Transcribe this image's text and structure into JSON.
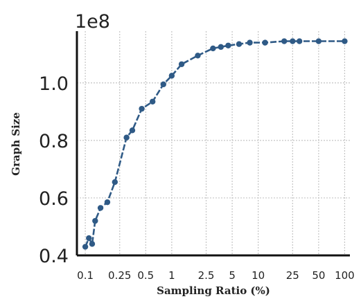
{
  "chart_data": {
    "type": "line",
    "title": "",
    "xlabel": "Sampling Ratio (%)",
    "ylabel": "Graph Size",
    "y_offset_label": "1e8",
    "x_scale": "log",
    "xlim": [
      0.08,
      115
    ],
    "ylim": [
      0.4,
      1.18
    ],
    "x_ticks": [
      0.1,
      0.25,
      0.5,
      1,
      2.5,
      5,
      10,
      25,
      50,
      100
    ],
    "x_tick_labels": [
      "0.1",
      "0.25",
      "0.5",
      "1",
      "2.5",
      "5",
      "10",
      "25",
      "50",
      "100"
    ],
    "y_ticks": [
      0.4,
      0.6,
      0.8,
      1.0
    ],
    "y_tick_labels": [
      "0.4",
      "0.6",
      "0.8",
      "1.0"
    ],
    "grid": true,
    "series": [
      {
        "color": "#2f5a86",
        "x": [
          0.1,
          0.11,
          0.12,
          0.13,
          0.15,
          0.18,
          0.22,
          0.3,
          0.35,
          0.45,
          0.6,
          0.8,
          1.0,
          1.3,
          2.0,
          3.0,
          3.7,
          4.5,
          6.0,
          8.0,
          12.0,
          20.0,
          25.0,
          30.0,
          50.0,
          100.0
        ],
        "y": [
          0.43,
          0.46,
          0.44,
          0.52,
          0.565,
          0.585,
          0.655,
          0.81,
          0.835,
          0.91,
          0.935,
          0.995,
          1.025,
          1.065,
          1.095,
          1.12,
          1.125,
          1.13,
          1.135,
          1.14,
          1.14,
          1.145,
          1.145,
          1.145,
          1.145,
          1.145
        ]
      }
    ]
  }
}
